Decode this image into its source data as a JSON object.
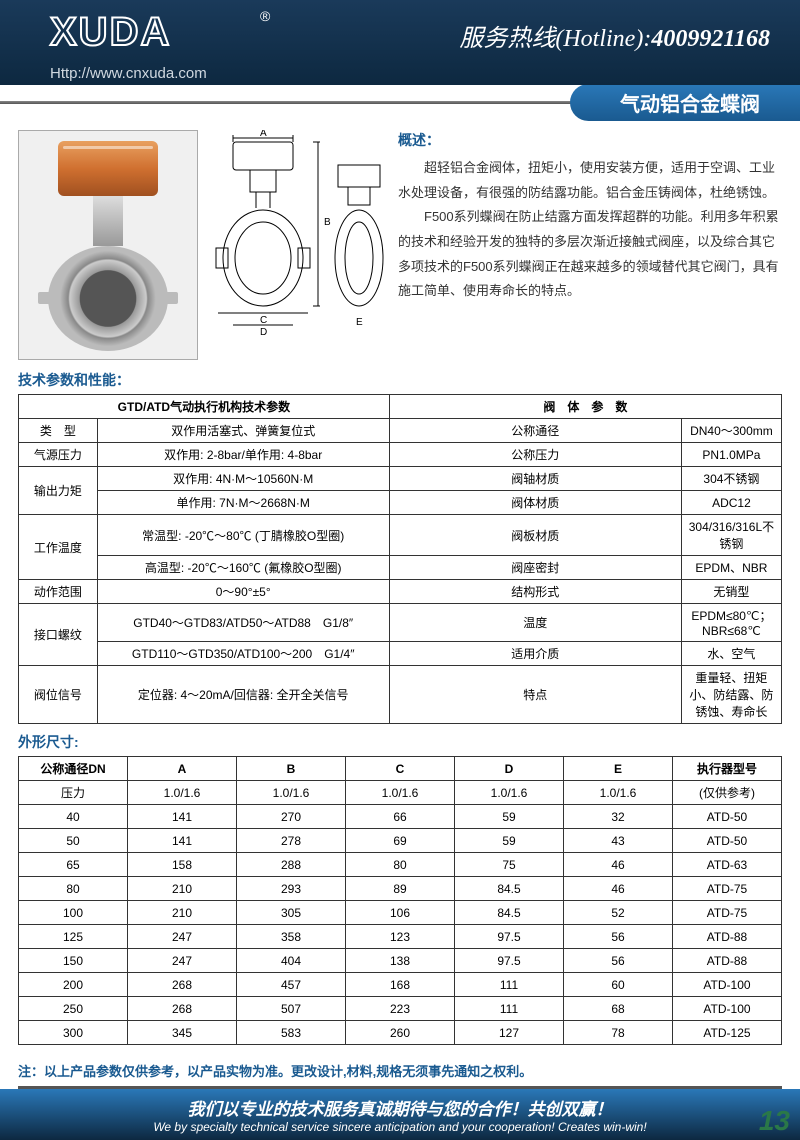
{
  "header": {
    "logo": "XUDA",
    "hotline_label": "服务热线(Hotline):",
    "hotline_number": "4009921168",
    "url": "Http://www.cnxuda.com"
  },
  "product_title": "气动铝合金蝶阀",
  "overview": {
    "title": "概述：",
    "p1": "超轻铝合金阀体，扭矩小，使用安装方便，适用于空调、工业水处理设备，有很强的防结露功能。铝合金压铸阀体，杜绝锈蚀。",
    "p2": "F500系列蝶阀在防止结露方面发挥超群的功能。利用多年积累的技术和经验开发的独特的多层次渐近接触式阀座，以及综合其它多项技术的F500系列蝶阀正在越来越多的领域替代其它阀门，具有施工简单、使用寿命长的特点。"
  },
  "tech_section_title": "技术参数和性能：",
  "tech_headers": {
    "left": "GTD/ATD气动执行机构技术参数",
    "right": "阀　体　参　数"
  },
  "tech_rows": [
    {
      "l1": "类　型",
      "l2": "双作用活塞式、弹簧复位式",
      "r1": "公称通径",
      "r2": "DN40～300mm"
    },
    {
      "l1": "气源压力",
      "l2": "双作用: 2-8bar/单作用: 4-8bar",
      "r1": "公称压力",
      "r2": "PN1.0MPa"
    },
    {
      "l1": "输出力矩",
      "l2a": "双作用: 4N·M～10560N·M",
      "l2b": "单作用: 7N·M～2668N·M",
      "r1a": "阀轴材质",
      "r2a": "304不锈钢",
      "r1b": "阀体材质",
      "r2b": "ADC12",
      "merged": true
    },
    {
      "l1": "工作温度",
      "l2a": "常温型: -20℃～80℃ (丁腈橡胶O型圈)",
      "l2b": "高温型: -20℃～160℃ (氟橡胶O型圈)",
      "r1a": "阀板材质",
      "r2a": "304/316/316L不锈钢",
      "r1b": "阀座密封",
      "r2b": "EPDM、NBR",
      "merged": true
    },
    {
      "l1": "动作范围",
      "l2": "0～90°±5°",
      "r1": "结构形式",
      "r2": "无销型"
    },
    {
      "l1": "接口螺纹",
      "l2a": "GTD40～GTD83/ATD50～ATD88　G1/8″",
      "l2b": "GTD110～GTD350/ATD100～200　G1/4″",
      "r1a": "温度",
      "r2a": "EPDM≤80℃；NBR≤68℃",
      "r1b": "适用介质",
      "r2b": "水、空气",
      "merged": true
    },
    {
      "l1": "阀位信号",
      "l2": "定位器: 4～20mA/回信器: 全开全关信号",
      "r1": "特点",
      "r2": "重量轻、扭矩小、防结露、防锈蚀、寿命长"
    }
  ],
  "dim_section_title": "外形尺寸:",
  "dim_header": [
    "公称通径DN",
    "A",
    "B",
    "C",
    "D",
    "E",
    "执行器型号"
  ],
  "dim_pressure_row": [
    "压力",
    "1.0/1.6",
    "1.0/1.6",
    "1.0/1.6",
    "1.0/1.6",
    "1.0/1.6",
    "(仅供参考)"
  ],
  "dim_rows": [
    [
      "40",
      "141",
      "270",
      "66",
      "59",
      "32",
      "ATD-50"
    ],
    [
      "50",
      "141",
      "278",
      "69",
      "59",
      "43",
      "ATD-50"
    ],
    [
      "65",
      "158",
      "288",
      "80",
      "75",
      "46",
      "ATD-63"
    ],
    [
      "80",
      "210",
      "293",
      "89",
      "84.5",
      "46",
      "ATD-75"
    ],
    [
      "100",
      "210",
      "305",
      "106",
      "84.5",
      "52",
      "ATD-75"
    ],
    [
      "125",
      "247",
      "358",
      "123",
      "97.5",
      "56",
      "ATD-88"
    ],
    [
      "150",
      "247",
      "404",
      "138",
      "97.5",
      "56",
      "ATD-88"
    ],
    [
      "200",
      "268",
      "457",
      "168",
      "111",
      "60",
      "ATD-100"
    ],
    [
      "250",
      "268",
      "507",
      "223",
      "111",
      "68",
      "ATD-100"
    ],
    [
      "300",
      "345",
      "583",
      "260",
      "127",
      "78",
      "ATD-125"
    ]
  ],
  "note": "注：以上产品参数仅供参考，以产品实物为准。更改设计,材料,规格无须事先通知之权利。",
  "footer": {
    "cn": "我们以专业的技术服务真诚期待与您的合作！共创双赢！",
    "en": "We by specialty technical service sincere anticipation and your cooperation! Creates win-win!",
    "page": "13"
  },
  "diagram_labels": {
    "A": "A",
    "B": "B",
    "C": "C",
    "D": "D",
    "E": "E"
  }
}
